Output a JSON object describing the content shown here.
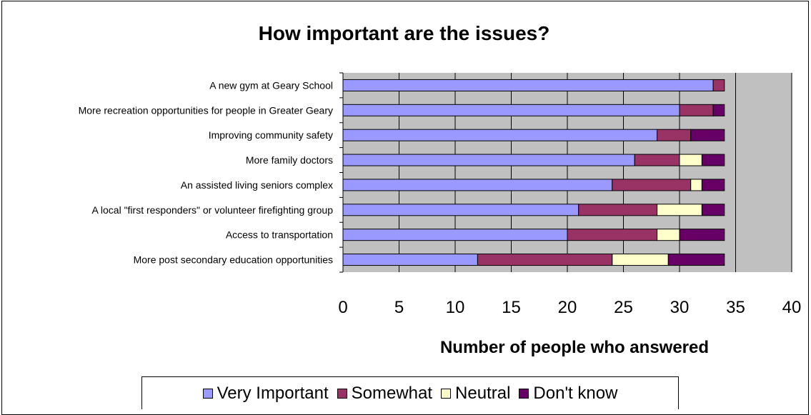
{
  "chart_data": {
    "type": "bar",
    "orientation": "horizontal",
    "stacked": true,
    "title": "How important are the issues?",
    "xlabel": "Number of people who answered",
    "ylabel": "",
    "xlim": [
      0,
      40
    ],
    "xticks": [
      "0",
      "5",
      "10",
      "15",
      "20",
      "25",
      "30",
      "35",
      "40"
    ],
    "grid": true,
    "legend_position": "bottom",
    "categories": [
      "A new gym at Geary School",
      "More recreation opportunities for people in Greater Geary",
      "Improving community safety",
      "More family doctors",
      "An assisted living seniors complex",
      "A local \"first responders\" or volunteer firefighting group",
      "Access to transportation",
      "More post secondary education opportunities"
    ],
    "series": [
      {
        "name": "Very Important",
        "color": "#9999ff",
        "values": [
          33,
          30,
          28,
          26,
          24,
          21,
          20,
          12
        ]
      },
      {
        "name": "Somewhat",
        "color": "#993366",
        "values": [
          1,
          3,
          3,
          4,
          7,
          7,
          8,
          12
        ]
      },
      {
        "name": "Neutral",
        "color": "#ffffcc",
        "values": [
          0,
          0,
          0,
          2,
          1,
          4,
          2,
          5
        ]
      },
      {
        "name": "Don't know",
        "color": "#660066",
        "values": [
          0,
          1,
          3,
          2,
          2,
          2,
          4,
          5
        ]
      }
    ],
    "plot_background": "#c0c0c0"
  }
}
